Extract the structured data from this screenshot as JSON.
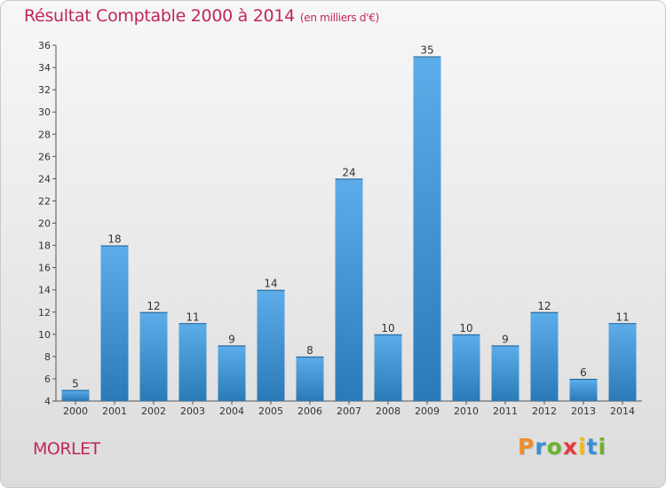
{
  "header": {
    "title": "Résultat Comptable 2000 à 2014",
    "subtitle": "(en milliers d'€)"
  },
  "footer": {
    "commune": "MORLET",
    "logo": {
      "letters": [
        "P",
        "r",
        "o",
        "x",
        "i",
        "t",
        "i"
      ],
      "colors": [
        "#f28c28",
        "#3a8fd6",
        "#6ab42d",
        "#e23b3b",
        "#f2b81f",
        "#3a8fd6",
        "#6ab42d"
      ]
    }
  },
  "colors": {
    "bar_light": "#5dadea",
    "bar_dark": "#2a7ab8",
    "bar_top": "#1e5f94",
    "axis": "#555555",
    "title": "#c0275a"
  },
  "chart_data": {
    "type": "bar",
    "title": "Résultat Comptable 2000 à 2014",
    "subtitle": "(en milliers d'€)",
    "xlabel": "",
    "ylabel": "",
    "categories": [
      "2000",
      "2001",
      "2002",
      "2003",
      "2004",
      "2005",
      "2006",
      "2007",
      "2008",
      "2009",
      "2010",
      "2011",
      "2012",
      "2013",
      "2014"
    ],
    "values": [
      5,
      18,
      12,
      11,
      9,
      14,
      8,
      24,
      10,
      35,
      10,
      9,
      12,
      6,
      11
    ],
    "ylim": [
      4,
      36
    ],
    "yticks": [
      4,
      6,
      8,
      10,
      12,
      14,
      16,
      18,
      20,
      22,
      24,
      26,
      28,
      30,
      32,
      34,
      36
    ],
    "grid": false
  }
}
